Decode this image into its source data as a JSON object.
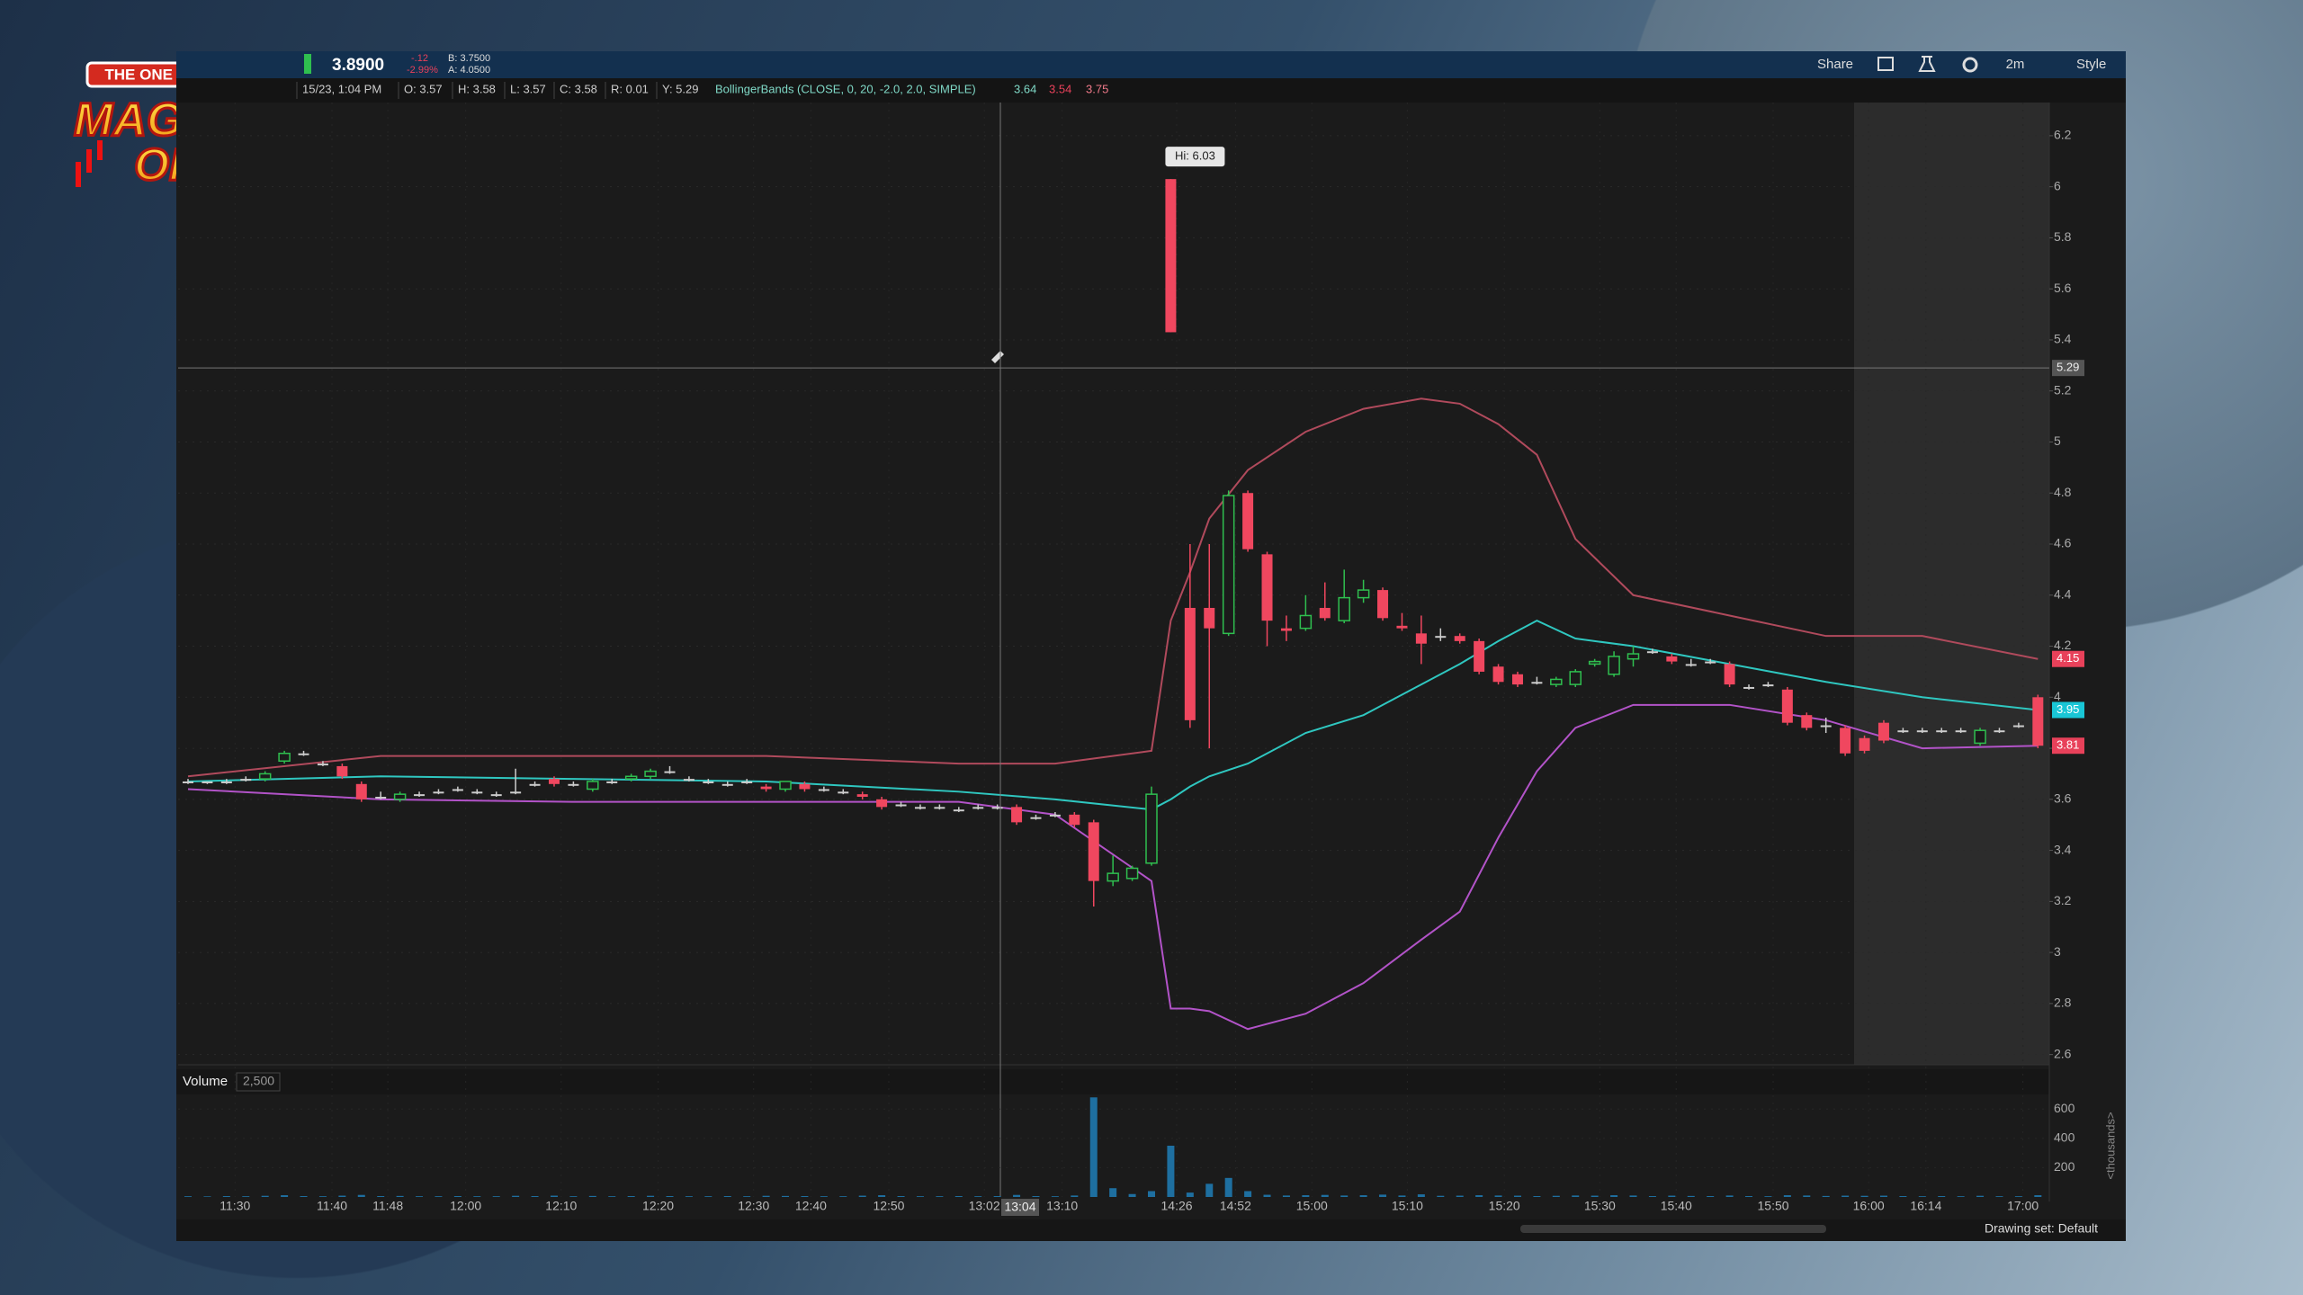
{
  "logo": {
    "tagline": "THE ONE LANCE B'S",
    "word1": "MAGNUM",
    "word2": "OPUS"
  },
  "toolbar": {
    "last": "3.8900",
    "change": "-.12",
    "change_pct": "-2.99%",
    "bid": "B: 3.7500",
    "ask": "A: 4.0500",
    "share": "Share",
    "timeframe": "2m",
    "style": "Style"
  },
  "info_bar": {
    "items": [
      "15/23, 1:04 PM",
      "O: 3.57",
      "H: 3.58",
      "L: 3.57",
      "C: 3.58",
      "R: 0.01",
      "Y: 5.29"
    ],
    "study": "BollingerBands (CLOSE, 0, 20, -2.0, 2.0, SIMPLE)",
    "study_values": [
      3.64,
      3.54,
      3.75
    ]
  },
  "chart": {
    "type": "candlestick",
    "ylim": [
      2.56,
      6.33
    ],
    "yticks": [
      2.6,
      2.8,
      3,
      3.2,
      3.4,
      3.6,
      3.8,
      4,
      4.2,
      4.4,
      4.6,
      4.8,
      5,
      5.2,
      5.4,
      5.6,
      5.8,
      6,
      6.2
    ],
    "candles": [
      [
        3.67,
        3.68,
        3.66,
        3.67
      ],
      [
        3.67,
        3.67,
        3.66,
        3.67
      ],
      [
        3.67,
        3.68,
        3.66,
        3.67
      ],
      [
        3.68,
        3.69,
        3.67,
        3.68
      ],
      [
        3.68,
        3.71,
        3.67,
        3.7
      ],
      [
        3.75,
        3.79,
        3.74,
        3.78
      ],
      [
        3.78,
        3.79,
        3.77,
        3.78
      ],
      [
        3.74,
        3.75,
        3.73,
        3.74
      ],
      [
        3.73,
        3.74,
        3.68,
        3.69
      ],
      [
        3.66,
        3.67,
        3.59,
        3.6
      ],
      [
        3.61,
        3.63,
        3.6,
        3.61
      ],
      [
        3.6,
        3.63,
        3.59,
        3.62
      ],
      [
        3.62,
        3.63,
        3.61,
        3.62
      ],
      [
        3.63,
        3.64,
        3.62,
        3.63
      ],
      [
        3.64,
        3.65,
        3.63,
        3.64
      ],
      [
        3.63,
        3.64,
        3.62,
        3.63
      ],
      [
        3.62,
        3.63,
        3.61,
        3.62
      ],
      [
        3.63,
        3.72,
        3.62,
        3.63
      ],
      [
        3.66,
        3.67,
        3.65,
        3.66
      ],
      [
        3.68,
        3.69,
        3.65,
        3.66
      ],
      [
        3.66,
        3.67,
        3.65,
        3.66
      ],
      [
        3.64,
        3.68,
        3.63,
        3.67
      ],
      [
        3.67,
        3.68,
        3.66,
        3.67
      ],
      [
        3.68,
        3.7,
        3.67,
        3.69
      ],
      [
        3.69,
        3.72,
        3.68,
        3.71
      ],
      [
        3.71,
        3.73,
        3.7,
        3.71
      ],
      [
        3.68,
        3.69,
        3.67,
        3.68
      ],
      [
        3.67,
        3.68,
        3.66,
        3.67
      ],
      [
        3.66,
        3.67,
        3.65,
        3.66
      ],
      [
        3.67,
        3.68,
        3.66,
        3.67
      ],
      [
        3.65,
        3.66,
        3.63,
        3.64
      ],
      [
        3.64,
        3.67,
        3.63,
        3.67
      ],
      [
        3.66,
        3.67,
        3.63,
        3.64
      ],
      [
        3.64,
        3.65,
        3.63,
        3.64
      ],
      [
        3.63,
        3.64,
        3.62,
        3.63
      ],
      [
        3.62,
        3.63,
        3.6,
        3.61
      ],
      [
        3.6,
        3.61,
        3.56,
        3.57
      ],
      [
        3.58,
        3.59,
        3.57,
        3.58
      ],
      [
        3.57,
        3.58,
        3.56,
        3.57
      ],
      [
        3.57,
        3.58,
        3.56,
        3.57
      ],
      [
        3.56,
        3.57,
        3.55,
        3.56
      ],
      [
        3.57,
        3.58,
        3.56,
        3.57
      ],
      [
        3.57,
        3.58,
        3.56,
        3.57
      ],
      [
        3.57,
        3.58,
        3.5,
        3.51
      ],
      [
        3.53,
        3.54,
        3.52,
        3.53
      ],
      [
        3.54,
        3.55,
        3.53,
        3.54
      ],
      [
        3.54,
        3.55,
        3.49,
        3.5
      ],
      [
        3.51,
        3.52,
        3.18,
        3.28
      ],
      [
        3.28,
        3.38,
        3.26,
        3.31
      ],
      [
        3.29,
        3.34,
        3.28,
        3.33
      ],
      [
        3.35,
        3.65,
        3.34,
        3.62
      ],
      [
        6.03,
        6.03,
        5.43,
        5.43
      ],
      [
        4.35,
        4.6,
        3.88,
        3.91
      ],
      [
        4.35,
        4.6,
        3.8,
        4.27
      ],
      [
        4.25,
        4.81,
        4.24,
        4.79
      ],
      [
        4.8,
        4.81,
        4.57,
        4.58
      ],
      [
        4.56,
        4.57,
        4.2,
        4.3
      ],
      [
        4.27,
        4.32,
        4.22,
        4.26
      ],
      [
        4.27,
        4.4,
        4.26,
        4.32
      ],
      [
        4.35,
        4.45,
        4.3,
        4.31
      ],
      [
        4.3,
        4.5,
        4.29,
        4.39
      ],
      [
        4.39,
        4.46,
        4.37,
        4.42
      ],
      [
        4.42,
        4.43,
        4.3,
        4.31
      ],
      [
        4.28,
        4.33,
        4.26,
        4.27
      ],
      [
        4.25,
        4.32,
        4.13,
        4.21
      ],
      [
        4.24,
        4.27,
        4.22,
        4.24
      ],
      [
        4.24,
        4.25,
        4.21,
        4.22
      ],
      [
        4.22,
        4.23,
        4.09,
        4.1
      ],
      [
        4.12,
        4.13,
        4.05,
        4.06
      ],
      [
        4.09,
        4.1,
        4.04,
        4.05
      ],
      [
        4.06,
        4.08,
        4.05,
        4.06
      ],
      [
        4.05,
        4.08,
        4.04,
        4.07
      ],
      [
        4.05,
        4.11,
        4.04,
        4.1
      ],
      [
        4.13,
        4.15,
        4.12,
        4.14
      ],
      [
        4.09,
        4.18,
        4.08,
        4.16
      ],
      [
        4.15,
        4.2,
        4.12,
        4.17
      ],
      [
        4.18,
        4.19,
        4.17,
        4.18
      ],
      [
        4.16,
        4.17,
        4.13,
        4.14
      ],
      [
        4.13,
        4.15,
        4.12,
        4.13
      ],
      [
        4.14,
        4.15,
        4.13,
        4.14
      ],
      [
        4.13,
        4.14,
        4.04,
        4.05
      ],
      [
        4.04,
        4.05,
        4.03,
        4.04
      ],
      [
        4.05,
        4.06,
        4.04,
        4.05
      ],
      [
        4.03,
        4.04,
        3.89,
        3.9
      ],
      [
        3.93,
        3.94,
        3.87,
        3.88
      ],
      [
        3.89,
        3.92,
        3.86,
        3.89
      ],
      [
        3.88,
        3.89,
        3.77,
        3.78
      ],
      [
        3.84,
        3.85,
        3.78,
        3.79
      ],
      [
        3.9,
        3.91,
        3.82,
        3.83
      ],
      [
        3.87,
        3.88,
        3.86,
        3.87
      ],
      [
        3.87,
        3.88,
        3.86,
        3.87
      ],
      [
        3.87,
        3.88,
        3.86,
        3.87
      ],
      [
        3.87,
        3.88,
        3.86,
        3.87
      ],
      [
        3.82,
        3.88,
        3.81,
        3.87
      ],
      [
        3.87,
        3.88,
        3.86,
        3.87
      ],
      [
        3.89,
        3.9,
        3.88,
        3.89
      ],
      [
        4.0,
        4.01,
        3.8,
        3.81
      ]
    ],
    "bands": {
      "x": [
        0,
        10,
        20,
        30,
        40,
        45,
        50,
        51,
        52,
        53,
        55,
        58,
        61,
        64,
        66,
        68,
        70,
        72,
        75,
        80,
        85,
        90,
        96
      ],
      "upper": [
        3.69,
        3.77,
        3.77,
        3.77,
        3.74,
        3.74,
        3.79,
        4.3,
        4.49,
        4.7,
        4.89,
        5.04,
        5.13,
        5.17,
        5.15,
        5.07,
        4.95,
        4.62,
        4.4,
        4.32,
        4.24,
        4.24,
        4.15
      ],
      "middle": [
        3.67,
        3.69,
        3.68,
        3.67,
        3.63,
        3.6,
        3.56,
        3.6,
        3.65,
        3.69,
        3.74,
        3.86,
        3.93,
        4.05,
        4.13,
        4.22,
        4.3,
        4.23,
        4.2,
        4.13,
        4.06,
        4.0,
        3.95
      ],
      "lower": [
        3.64,
        3.6,
        3.59,
        3.59,
        3.59,
        3.54,
        3.28,
        2.78,
        2.78,
        2.77,
        2.7,
        2.76,
        2.88,
        3.05,
        3.16,
        3.45,
        3.71,
        3.88,
        3.97,
        3.97,
        3.91,
        3.8,
        3.81
      ]
    },
    "hi_label": "Hi: 6.03",
    "crosshair_price": 5.29,
    "price_markers": [
      {
        "value": 4.15,
        "color": "#e8415a"
      },
      {
        "value": 3.95,
        "color": "#19c6d6"
      },
      {
        "value": 3.81,
        "color": "#e8415a"
      }
    ],
    "time_labels": [
      "11:30",
      "11:40",
      "11:48",
      "12:00",
      "12:10",
      "12:20",
      "12:30",
      "12:40",
      "12:50",
      "13:02",
      "13:10",
      "14:26",
      "14:52",
      "15:00",
      "15:10",
      "15:20",
      "15:30",
      "15:40",
      "15:50",
      "16:00",
      "16:14",
      "17:00"
    ],
    "highlight_time": "13:04"
  },
  "volume": {
    "title": "Volume",
    "scale": "2,500",
    "ylim": [
      0,
      700
    ],
    "yticks": [
      200,
      400,
      600
    ],
    "unit": "<thousands>",
    "values": [
      5,
      4,
      6,
      5,
      8,
      12,
      6,
      5,
      9,
      14,
      6,
      7,
      5,
      5,
      6,
      5,
      5,
      8,
      6,
      9,
      5,
      7,
      5,
      6,
      8,
      6,
      5,
      5,
      6,
      5,
      8,
      7,
      6,
      5,
      5,
      9,
      12,
      6,
      5,
      5,
      6,
      5,
      6,
      14,
      6,
      5,
      10,
      680,
      60,
      20,
      40,
      350,
      30,
      90,
      130,
      40,
      15,
      10,
      12,
      14,
      10,
      12,
      16,
      10,
      18,
      8,
      9,
      12,
      10,
      9,
      6,
      8,
      10,
      9,
      12,
      10,
      6,
      9,
      7,
      6,
      10,
      6,
      5,
      12,
      10,
      7,
      9,
      8,
      9,
      6,
      5,
      6,
      5,
      8,
      5,
      5,
      12
    ]
  },
  "footer": {
    "drawing_set": "Drawing set: Default"
  }
}
